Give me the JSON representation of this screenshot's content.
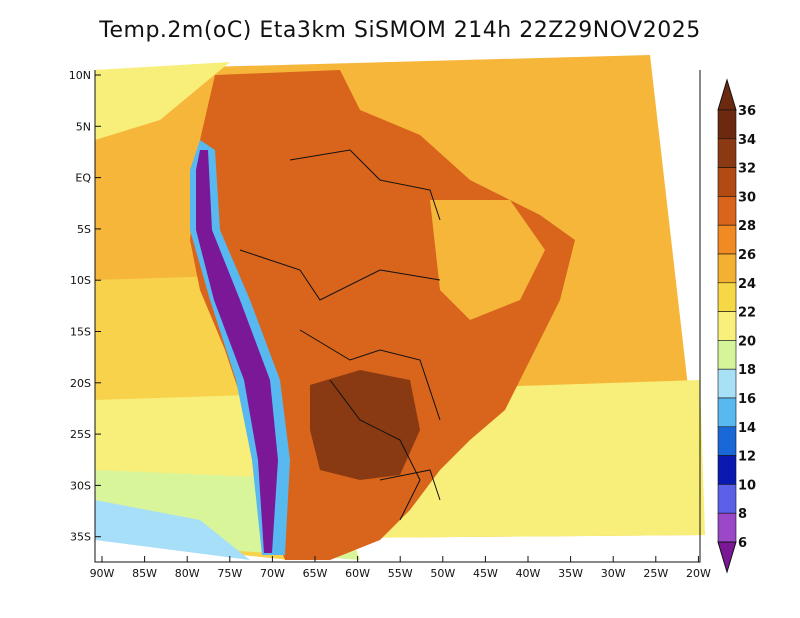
{
  "title": "Temp.2m(oC) Eta3km SiSMOM 214h 22Z29NOV2025",
  "map": {
    "lat_labels": [
      "10N",
      "5N",
      "EQ",
      "5S",
      "10S",
      "15S",
      "20S",
      "25S",
      "30S",
      "35S"
    ],
    "lon_labels": [
      "90W",
      "85W",
      "80W",
      "75W",
      "70W",
      "65W",
      "60W",
      "55W",
      "50W",
      "45W",
      "40W",
      "35W",
      "30W",
      "25W",
      "20W"
    ]
  },
  "colorbar": {
    "labels": [
      "36",
      "34",
      "32",
      "30",
      "28",
      "26",
      "24",
      "22",
      "20",
      "18",
      "16",
      "14",
      "12",
      "10",
      "8",
      "6"
    ],
    "colors": [
      "#6b2a10",
      "#8a3a12",
      "#b24a14",
      "#d9641c",
      "#f08a22",
      "#f4b030",
      "#f6d846",
      "#f8f07a",
      "#d6f59a",
      "#a8e0f8",
      "#58b8f0",
      "#1a68d8",
      "#0a1ab0",
      "#5a60e8",
      "#9a48c8",
      "#7a1898"
    ]
  },
  "field_colors": {
    "ocean_warm": "#f5b63a",
    "ocean_mid": "#f7d24a",
    "ocean_cool": "#f8ee7a",
    "ocean_cold": "#d9f59a",
    "ocean_colder": "#a8dff8",
    "land_hot": "#d9641c",
    "land_veryhot": "#8a3a12",
    "land_mild": "#f5b63a",
    "andes_cold": "#5a60e8",
    "andes_colder": "#7a1898",
    "andes_cool": "#58b8f0",
    "border": "#111111"
  }
}
